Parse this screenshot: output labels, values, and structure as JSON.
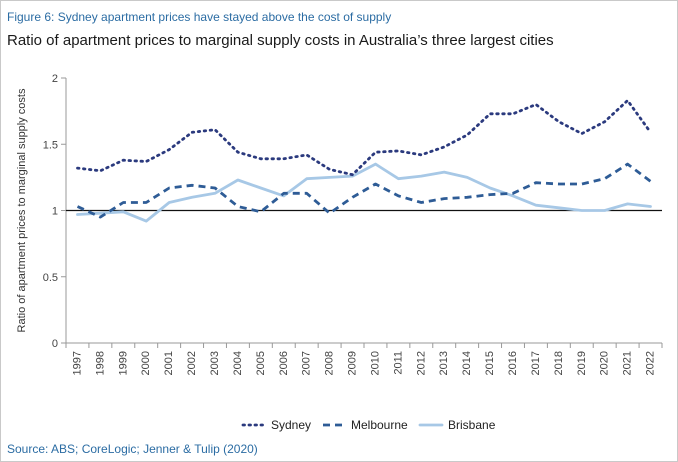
{
  "figure_label": "Figure 6: Sydney apartment prices have stayed above the cost of supply",
  "source": "Source: ABS; CoreLogic; Jenner & Tulip (2020)",
  "colors": {
    "sydney": "#2b3a7e",
    "melbourne": "#2e5c96",
    "brisbane": "#a7c8e6",
    "accent": "#2b6ca3"
  },
  "chart_data": {
    "type": "line",
    "title": "Ratio of apartment prices to marginal supply costs in Australia’s three largest cities",
    "xlabel": "",
    "ylabel": "Ratio of apartment prices to marginal supply costs",
    "ylim": [
      0,
      2
    ],
    "yticks": [
      0,
      0.5,
      1,
      1.5,
      2
    ],
    "ytick_labels": [
      "0",
      "0.5",
      "1",
      "1.5",
      "2"
    ],
    "reference_line": 1,
    "grid": false,
    "legend_position": "bottom",
    "x": [
      "1997",
      "1998",
      "1999",
      "2000",
      "2001",
      "2002",
      "2003",
      "2004",
      "2005",
      "2006",
      "2007",
      "2008",
      "2009",
      "2010",
      "2011",
      "2012",
      "2013",
      "2014",
      "2015",
      "2016",
      "2017",
      "2018",
      "2019",
      "2020",
      "2021",
      "2022"
    ],
    "series": [
      {
        "name": "Sydney",
        "style": "dotted",
        "values": [
          1.32,
          1.3,
          1.38,
          1.37,
          1.46,
          1.59,
          1.61,
          1.44,
          1.39,
          1.39,
          1.42,
          1.31,
          1.27,
          1.44,
          1.45,
          1.42,
          1.48,
          1.57,
          1.73,
          1.73,
          1.8,
          1.67,
          1.58,
          1.67,
          1.83,
          1.59
        ]
      },
      {
        "name": "Melbourne",
        "style": "dashed",
        "values": [
          1.03,
          0.95,
          1.06,
          1.06,
          1.17,
          1.19,
          1.17,
          1.03,
          0.99,
          1.13,
          1.13,
          0.98,
          1.1,
          1.2,
          1.11,
          1.06,
          1.09,
          1.1,
          1.12,
          1.13,
          1.21,
          1.2,
          1.2,
          1.24,
          1.35,
          1.22
        ]
      },
      {
        "name": "Brisbane",
        "style": "solid",
        "values": [
          0.97,
          0.98,
          0.99,
          0.92,
          1.06,
          1.1,
          1.13,
          1.23,
          1.17,
          1.11,
          1.24,
          1.25,
          1.26,
          1.35,
          1.24,
          1.26,
          1.29,
          1.25,
          1.17,
          1.11,
          1.04,
          1.02,
          1.0,
          1.0,
          1.05,
          1.03
        ]
      }
    ]
  }
}
